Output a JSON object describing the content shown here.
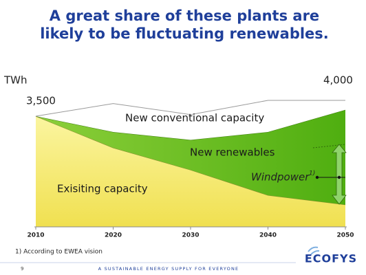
{
  "chart_data": {
    "type": "area",
    "stacked": true,
    "title": [
      "A great share of these plants are",
      "likely to be fluctuating renewables."
    ],
    "y_label": "TWh",
    "x": [
      2010,
      2020,
      2030,
      2040,
      2050
    ],
    "xlim": [
      2010,
      2050
    ],
    "xticks": [
      2010,
      2020,
      2030,
      2040,
      2050
    ],
    "ylim": [
      0,
      4000
    ],
    "series": [
      {
        "name": "Exisiting capacity",
        "color": "#f3e868",
        "values": [
          3500,
          2500,
          1800,
          1000,
          700
        ]
      },
      {
        "name": "New renewables",
        "color": "#6cbd1c",
        "values": [
          0,
          500,
          950,
          2000,
          3000
        ]
      },
      {
        "name": "New conventional capacity",
        "color": "#ffffff",
        "values": [
          0,
          900,
          800,
          1000,
          300
        ]
      }
    ],
    "annotations": [
      "3,500",
      "4,000",
      "Windpower",
      "1)"
    ]
  },
  "footnote": "1) According to EWEA vision",
  "page_number": "9",
  "tagline": "A SUSTAINABLE ENERGY SUPPLY FOR EVERYONE",
  "logo": "ECOFYS"
}
